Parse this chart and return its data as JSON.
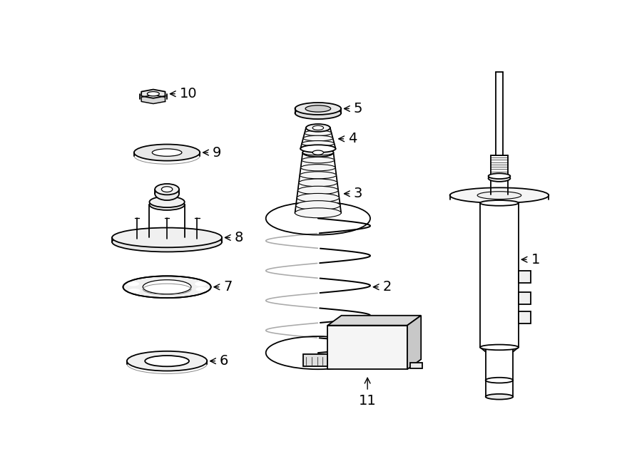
{
  "bg_color": "#ffffff",
  "line_color": "#000000",
  "line_width": 1.3,
  "fig_width": 9.0,
  "fig_height": 6.61,
  "dpi": 100
}
